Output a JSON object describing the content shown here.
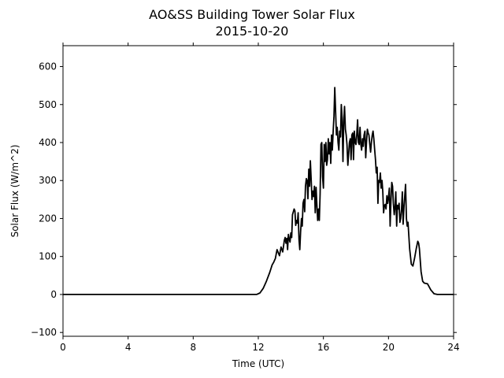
{
  "chart_data": {
    "type": "line",
    "title": "AO&SS Building Tower Solar Flux",
    "subtitle": "2015-10-20",
    "xlabel": "Time (UTC)",
    "ylabel": "Solar Flux (W/m^2)",
    "xlim": [
      0,
      24
    ],
    "ylim": [
      -110,
      655
    ],
    "xticks": [
      "0",
      "4",
      "8",
      "12",
      "16",
      "20",
      "24"
    ],
    "yticks": [
      "−100",
      "0",
      "100",
      "200",
      "300",
      "400",
      "500",
      "600"
    ],
    "grid": false,
    "legend": "none",
    "line_color": "#000000",
    "series": [
      {
        "x": [
          0,
          11.9,
          12.1,
          12.3,
          12.5,
          12.7,
          12.85,
          12.95,
          13.05,
          13.15,
          13.3,
          13.4,
          13.5,
          13.6,
          13.65,
          13.7,
          13.75,
          13.8,
          13.85,
          13.9,
          13.95,
          14.0,
          14.05,
          14.1,
          14.2,
          14.25,
          14.3,
          14.35,
          14.4,
          14.45,
          14.5,
          14.55,
          14.6,
          14.65,
          14.7,
          14.75,
          14.8,
          14.85,
          14.9,
          14.95,
          15.0,
          15.05,
          15.1,
          15.15,
          15.2,
          15.25,
          15.3,
          15.35,
          15.4,
          15.45,
          15.5,
          15.55,
          15.6,
          15.65,
          15.7,
          15.75,
          15.8,
          15.85,
          15.9,
          15.95,
          16.0,
          16.05,
          16.1,
          16.15,
          16.2,
          16.25,
          16.3,
          16.35,
          16.4,
          16.45,
          16.5,
          16.55,
          16.6,
          16.65,
          16.7,
          16.75,
          16.8,
          16.85,
          16.9,
          16.95,
          17.0,
          17.05,
          17.1,
          17.15,
          17.2,
          17.25,
          17.3,
          17.35,
          17.4,
          17.45,
          17.5,
          17.55,
          17.6,
          17.65,
          17.7,
          17.75,
          17.8,
          17.85,
          17.9,
          17.95,
          18.0,
          18.05,
          18.1,
          18.15,
          18.2,
          18.25,
          18.3,
          18.35,
          18.4,
          18.45,
          18.5,
          18.55,
          18.6,
          18.65,
          18.7,
          18.75,
          18.8,
          18.85,
          18.9,
          18.95,
          19.0,
          19.05,
          19.1,
          19.15,
          19.2,
          19.25,
          19.3,
          19.35,
          19.4,
          19.45,
          19.5,
          19.55,
          19.6,
          19.65,
          19.7,
          19.75,
          19.8,
          19.85,
          19.9,
          19.95,
          20.0,
          20.05,
          20.1,
          20.15,
          20.2,
          20.25,
          20.3,
          20.35,
          20.4,
          20.45,
          20.5,
          20.55,
          20.6,
          20.65,
          20.7,
          20.75,
          20.8,
          20.85,
          20.9,
          20.95,
          21.0,
          21.05,
          21.1,
          21.15,
          21.2,
          21.3,
          21.4,
          21.5,
          21.6,
          21.7,
          21.8,
          21.85,
          21.9,
          22.0,
          22.1,
          22.2,
          22.4,
          22.6,
          22.8,
          23.0,
          23.2,
          24.0
        ],
        "y": [
          0,
          0,
          4,
          16,
          35,
          58,
          78,
          85,
          95,
          118,
          102,
          125,
          112,
          143,
          150,
          135,
          148,
          118,
          158,
          145,
          138,
          162,
          150,
          210,
          225,
          220,
          182,
          195,
          188,
          215,
          145,
          118,
          165,
          200,
          180,
          240,
          250,
          218,
          285,
          305,
          300,
          252,
          330,
          285,
          352,
          300,
          250,
          272,
          258,
          285,
          215,
          282,
          235,
          195,
          225,
          195,
          265,
          395,
          400,
          310,
          280,
          395,
          350,
          400,
          340,
          355,
          410,
          370,
          400,
          345,
          420,
          380,
          430,
          470,
          545,
          480,
          420,
          440,
          400,
          380,
          430,
          415,
          500,
          465,
          350,
          455,
          495,
          435,
          420,
          395,
          340,
          370,
          400,
          410,
          355,
          420,
          425,
          355,
          430,
          400,
          395,
          420,
          460,
          400,
          395,
          440,
          395,
          380,
          410,
          390,
          420,
          430,
          360,
          400,
          435,
          425,
          420,
          395,
          375,
          400,
          420,
          430,
          410,
          380,
          355,
          320,
          335,
          240,
          300,
          295,
          320,
          280,
          300,
          270,
          215,
          235,
          237,
          225,
          260,
          240,
          255,
          280,
          180,
          245,
          295,
          285,
          240,
          210,
          230,
          270,
          180,
          235,
          225,
          240,
          190,
          200,
          225,
          270,
          185,
          230,
          260,
          290,
          200,
          180,
          190,
          120,
          80,
          75,
          95,
          120,
          140,
          135,
          120,
          60,
          35,
          30,
          28,
          12,
          2,
          0,
          0,
          0
        ]
      }
    ]
  }
}
